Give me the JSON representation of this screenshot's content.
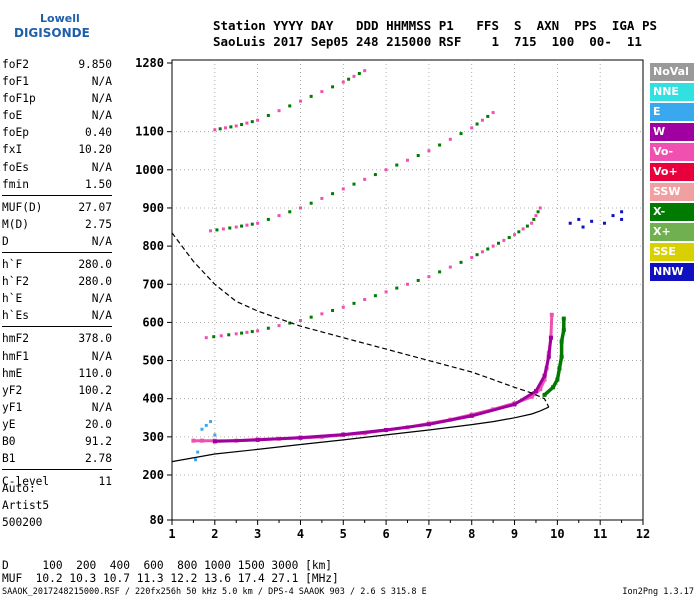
{
  "logo": {
    "line1": "Lowell",
    "line2": "DIGISONDE"
  },
  "header": {
    "line1": "Station YYYY DAY   DDD HHMMSS P1   FFS  S  AXN  PPS  IGA PS",
    "line2": "SaoLuis 2017 Sep05 248 215000 RSF    1  715  100  00-  11"
  },
  "params": [
    {
      "name": "foF2",
      "value": "9.850"
    },
    {
      "name": "foF1",
      "value": "N/A"
    },
    {
      "name": "foF1p",
      "value": "N/A"
    },
    {
      "name": "foE",
      "value": "N/A"
    },
    {
      "name": "foEp",
      "value": "0.40"
    },
    {
      "name": "fxI",
      "value": "10.20"
    },
    {
      "name": "foEs",
      "value": "N/A"
    },
    {
      "name": "fmin",
      "value": "1.50"
    },
    {
      "name": "MUF(D)",
      "value": "27.07"
    },
    {
      "name": "M(D)",
      "value": "2.75"
    },
    {
      "name": "D",
      "value": "N/A"
    },
    {
      "name": "h`F",
      "value": "280.0"
    },
    {
      "name": "h`F2",
      "value": "280.0"
    },
    {
      "name": "h`E",
      "value": "N/A"
    },
    {
      "name": "h`Es",
      "value": "N/A"
    },
    {
      "name": "hmF2",
      "value": "378.0"
    },
    {
      "name": "hmF1",
      "value": "N/A"
    },
    {
      "name": "hmE",
      "value": "110.0"
    },
    {
      "name": "yF2",
      "value": "100.2"
    },
    {
      "name": "yF1",
      "value": "N/A"
    },
    {
      "name": "yE",
      "value": "20.0"
    },
    {
      "name": "B0",
      "value": "91.2"
    },
    {
      "name": "B1",
      "value": "2.78"
    },
    {
      "name": "C-level",
      "value": "11"
    }
  ],
  "auto": {
    "line1": "Auto:",
    "line2": "Artist5",
    "line3": "500200"
  },
  "legend": [
    {
      "label": "NoVal",
      "color": "#9a9a9a"
    },
    {
      "label": "NNE",
      "color": "#33e0e0"
    },
    {
      "label": "E",
      "color": "#3aa8ee"
    },
    {
      "label": "W",
      "color": "#a000a0"
    },
    {
      "label": "Vo-",
      "color": "#f050b0"
    },
    {
      "label": "Vo+",
      "color": "#e8003c"
    },
    {
      "label": "SSW",
      "color": "#f0a0a0"
    },
    {
      "label": "X-",
      "color": "#007a00"
    },
    {
      "label": "X+",
      "color": "#70b050"
    },
    {
      "label": "SSE",
      "color": "#d8d000"
    },
    {
      "label": "NNW",
      "color": "#1010c0"
    }
  ],
  "muf_table": {
    "line1": "D     100  200  400  600  800 1000 1500 3000 [km]",
    "line2": "MUF  10.2 10.3 10.7 11.3 12.2 13.6 17.4 27.1 [MHz]"
  },
  "footer": "SAAOK_2017248215000.RSF / 220fx256h 50 kHz 5.0 km / DPS-4 SAAOK 903 / 2.6 S 315.8 E",
  "version": "Ion2Png 1.3.17",
  "chart_data": {
    "type": "scatter",
    "x_ticks": [
      "1",
      "2",
      "3",
      "4",
      "5",
      "6",
      "7",
      "8",
      "9",
      "10",
      "11",
      "12"
    ],
    "y_ticks": [
      "80",
      "200",
      "300",
      "400",
      "500",
      "600",
      "700",
      "800",
      "900",
      "1000",
      "1100",
      "1280"
    ],
    "xlim": [
      1,
      12
    ],
    "ylim": [
      80,
      1280
    ],
    "grid": "dotted",
    "series": [
      {
        "role": "trace",
        "mode": "O",
        "color": "#f050b0",
        "points": [
          [
            1.5,
            290
          ],
          [
            1.7,
            290
          ],
          [
            2.0,
            290
          ],
          [
            2.5,
            290
          ],
          [
            3.0,
            293
          ],
          [
            3.5,
            295
          ],
          [
            4.0,
            297
          ],
          [
            4.5,
            300
          ],
          [
            5.0,
            305
          ],
          [
            5.5,
            310
          ],
          [
            6.0,
            318
          ],
          [
            6.5,
            325
          ],
          [
            7.0,
            335
          ],
          [
            7.5,
            345
          ],
          [
            8.0,
            358
          ],
          [
            8.5,
            372
          ],
          [
            9.0,
            388
          ],
          [
            9.4,
            405
          ],
          [
            9.6,
            425
          ],
          [
            9.7,
            450
          ],
          [
            9.75,
            480
          ],
          [
            9.8,
            520
          ],
          [
            9.85,
            560
          ],
          [
            9.87,
            620
          ]
        ]
      },
      {
        "role": "trace",
        "mode": "O",
        "color": "#a000a0",
        "points": [
          [
            2.0,
            288
          ],
          [
            3.0,
            292
          ],
          [
            4.0,
            298
          ],
          [
            5.0,
            306
          ],
          [
            6.0,
            318
          ],
          [
            7.0,
            333
          ],
          [
            8.0,
            355
          ],
          [
            9.0,
            385
          ],
          [
            9.5,
            420
          ],
          [
            9.7,
            460
          ],
          [
            9.8,
            510
          ],
          [
            9.85,
            560
          ]
        ]
      },
      {
        "role": "trace",
        "mode": "X",
        "color": "#007a00",
        "points": [
          [
            9.7,
            410
          ],
          [
            9.9,
            430
          ],
          [
            10.0,
            450
          ],
          [
            10.05,
            480
          ],
          [
            10.1,
            510
          ],
          [
            10.1,
            550
          ],
          [
            10.15,
            580
          ],
          [
            10.15,
            610
          ]
        ]
      },
      {
        "role": "multi",
        "mode": "2",
        "color": "#f050b0",
        "points": [
          [
            1.8,
            560
          ],
          [
            2.5,
            570
          ],
          [
            3.0,
            578
          ],
          [
            4.0,
            605
          ],
          [
            5.0,
            640
          ],
          [
            6.0,
            680
          ],
          [
            7.0,
            720
          ],
          [
            8.0,
            770
          ],
          [
            8.5,
            800
          ],
          [
            9.0,
            830
          ],
          [
            9.4,
            860
          ],
          [
            9.6,
            900
          ]
        ]
      },
      {
        "role": "multi",
        "mode": "3",
        "color": "#f050b0",
        "points": [
          [
            1.9,
            840
          ],
          [
            2.5,
            850
          ],
          [
            3.0,
            860
          ],
          [
            4.0,
            900
          ],
          [
            5.0,
            950
          ],
          [
            6.0,
            1000
          ],
          [
            7.0,
            1050
          ],
          [
            8.0,
            1110
          ],
          [
            8.5,
            1150
          ]
        ]
      },
      {
        "role": "multi",
        "mode": "4",
        "color": "#f050b0",
        "points": [
          [
            2.0,
            1105
          ],
          [
            2.5,
            1115
          ],
          [
            3.0,
            1130
          ],
          [
            4.0,
            1180
          ],
          [
            5.0,
            1230
          ],
          [
            5.5,
            1260
          ]
        ]
      },
      {
        "role": "scatter",
        "mode": "X",
        "color": "#1010c0",
        "points": [
          [
            10.3,
            860
          ],
          [
            10.5,
            870
          ],
          [
            10.8,
            865
          ],
          [
            11.1,
            860
          ],
          [
            11.3,
            880
          ],
          [
            11.5,
            870
          ],
          [
            11.5,
            890
          ],
          [
            10.6,
            850
          ]
        ]
      },
      {
        "role": "scatter",
        "mode": "E",
        "color": "#3aa8ee",
        "points": [
          [
            1.6,
            260
          ],
          [
            1.7,
            320
          ],
          [
            1.8,
            330
          ],
          [
            1.9,
            340
          ],
          [
            2.0,
            305
          ],
          [
            1.55,
            240
          ]
        ]
      }
    ],
    "profile": {
      "color": "#000",
      "points": [
        [
          1.0,
          235
        ],
        [
          2.0,
          255
        ],
        [
          3.0,
          267
        ],
        [
          4.0,
          280
        ],
        [
          5.0,
          292
        ],
        [
          6.0,
          305
        ],
        [
          7.0,
          318
        ],
        [
          8.0,
          332
        ],
        [
          8.5,
          340
        ],
        [
          9.0,
          350
        ],
        [
          9.4,
          360
        ],
        [
          9.6,
          368
        ],
        [
          9.8,
          378
        ]
      ]
    },
    "muf_curve": {
      "color": "#000",
      "dashed": true,
      "points": [
        [
          1.0,
          835
        ],
        [
          1.5,
          760
        ],
        [
          2.0,
          700
        ],
        [
          2.5,
          655
        ],
        [
          3.0,
          630
        ],
        [
          3.5,
          610
        ],
        [
          4.0,
          590
        ],
        [
          4.5,
          575
        ],
        [
          5.0,
          560
        ],
        [
          6.0,
          530
        ],
        [
          7.0,
          500
        ],
        [
          8.0,
          470
        ],
        [
          8.5,
          450
        ],
        [
          9.0,
          430
        ],
        [
          9.4,
          415
        ],
        [
          9.7,
          400
        ],
        [
          9.8,
          378
        ]
      ]
    }
  }
}
